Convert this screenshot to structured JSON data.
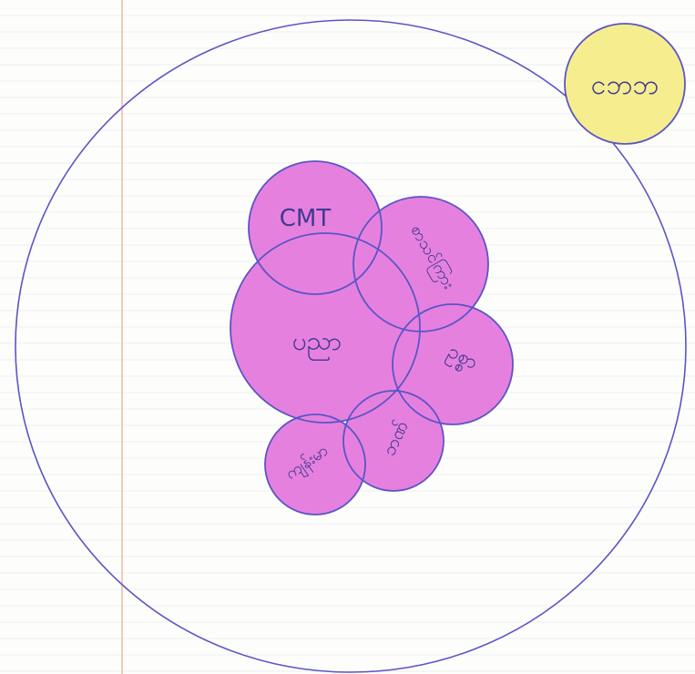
{
  "diagram": {
    "colors": {
      "paper": "#fdfdfb",
      "margin_line": "#f2b9a8",
      "outline": "#5b55c6",
      "group_fill": "#e680df",
      "external_fill": "#f6ee8e"
    },
    "outer_community_label": "",
    "external_circle": {
      "label": "ငဘဘ"
    },
    "circles": [
      {
        "id": "cmt",
        "label": "CMT"
      },
      {
        "id": "top-right",
        "label": "စာသင်ကြား"
      },
      {
        "id": "center",
        "label": "ပညာ"
      },
      {
        "id": "right",
        "label": "ဥစ္စာ"
      },
      {
        "id": "bottom-middle",
        "label": "ဘဏ်"
      },
      {
        "id": "bottom-left",
        "label": "ကျန်းမာ"
      }
    ]
  }
}
